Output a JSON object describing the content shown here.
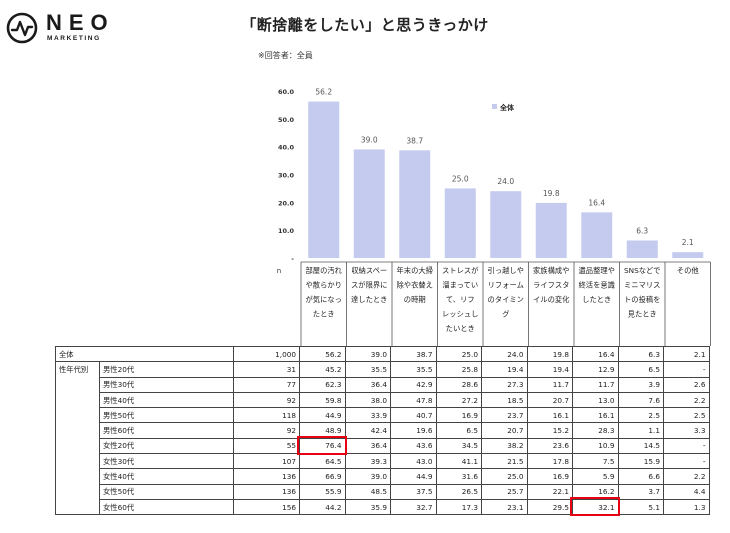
{
  "logo": {
    "name": "NEO",
    "sub": "MARKETING"
  },
  "title": "「断捨離をしたい」と思うきっかけ",
  "note": "※回答者：全員",
  "chart_data": {
    "type": "bar",
    "legend": "全体",
    "legend_position": "top-right",
    "ylim": [
      0,
      60
    ],
    "yticks": [
      "60.0",
      "50.0",
      "40.0",
      "30.0",
      "20.0",
      "10.0",
      "-"
    ],
    "n_label": "n",
    "series": [
      {
        "name": "全体",
        "color": "#c5cbef",
        "values": [
          56.2,
          39.0,
          38.7,
          25.0,
          24.0,
          19.8,
          16.4,
          6.3,
          2.1
        ]
      }
    ],
    "categories": [
      [
        "部屋の汚れ",
        "や散らかり",
        "が気になっ",
        "たとき"
      ],
      [
        "収納スペー",
        "スが限界に",
        "達したとき"
      ],
      [
        "年末の大掃",
        "除や衣替え",
        "の時期"
      ],
      [
        "ストレスが",
        "溜まってい",
        "て、リフ",
        "レッシュし",
        "たいとき"
      ],
      [
        "引っ越しや",
        "リフォーム",
        "のタイミン",
        "グ"
      ],
      [
        "家族構成や",
        "ライフスタ",
        "イルの変化"
      ],
      [
        "遺品整理や",
        "終活を意識",
        "したとき"
      ],
      [
        "SNSなどで",
        "ミニマリス",
        "トの投稿を",
        "見たとき"
      ],
      [
        "その他"
      ]
    ],
    "table": {
      "rows": [
        {
          "label": "全体",
          "group": "",
          "n": "1,000",
          "values": [
            "56.2",
            "39.0",
            "38.7",
            "25.0",
            "24.0",
            "19.8",
            "16.4",
            "6.3",
            "2.1"
          ]
        },
        {
          "label": "男性20代",
          "group": "性年代別",
          "n": "31",
          "values": [
            "45.2",
            "35.5",
            "35.5",
            "25.8",
            "19.4",
            "19.4",
            "12.9",
            "6.5",
            "-"
          ]
        },
        {
          "label": "男性30代",
          "group": "",
          "n": "77",
          "values": [
            "62.3",
            "36.4",
            "42.9",
            "28.6",
            "27.3",
            "11.7",
            "11.7",
            "3.9",
            "2.6"
          ]
        },
        {
          "label": "男性40代",
          "group": "",
          "n": "92",
          "values": [
            "59.8",
            "38.0",
            "47.8",
            "27.2",
            "18.5",
            "20.7",
            "13.0",
            "7.6",
            "2.2"
          ]
        },
        {
          "label": "男性50代",
          "group": "",
          "n": "118",
          "values": [
            "44.9",
            "33.9",
            "40.7",
            "16.9",
            "23.7",
            "16.1",
            "16.1",
            "2.5",
            "2.5"
          ]
        },
        {
          "label": "男性60代",
          "group": "",
          "n": "92",
          "values": [
            "48.9",
            "42.4",
            "19.6",
            "6.5",
            "20.7",
            "15.2",
            "28.3",
            "1.1",
            "3.3"
          ]
        },
        {
          "label": "女性20代",
          "group": "",
          "n": "55",
          "values": [
            "76.4",
            "36.4",
            "43.6",
            "34.5",
            "38.2",
            "23.6",
            "10.9",
            "14.5",
            "-"
          ]
        },
        {
          "label": "女性30代",
          "group": "",
          "n": "107",
          "values": [
            "64.5",
            "39.3",
            "43.0",
            "41.1",
            "21.5",
            "17.8",
            "7.5",
            "15.9",
            "-"
          ]
        },
        {
          "label": "女性40代",
          "group": "",
          "n": "136",
          "values": [
            "66.9",
            "39.0",
            "44.9",
            "31.6",
            "25.0",
            "16.9",
            "5.9",
            "6.6",
            "2.2"
          ]
        },
        {
          "label": "女性50代",
          "group": "",
          "n": "136",
          "values": [
            "55.9",
            "48.5",
            "37.5",
            "26.5",
            "25.7",
            "22.1",
            "16.2",
            "3.7",
            "4.4"
          ]
        },
        {
          "label": "女性60代",
          "group": "",
          "n": "156",
          "values": [
            "44.2",
            "35.9",
            "32.7",
            "17.3",
            "23.1",
            "29.5",
            "32.1",
            "5.1",
            "1.3"
          ]
        }
      ],
      "highlights": [
        {
          "row": 6,
          "col": 0
        },
        {
          "row": 10,
          "col": 6
        }
      ],
      "highlight_color": "#e60012"
    }
  }
}
